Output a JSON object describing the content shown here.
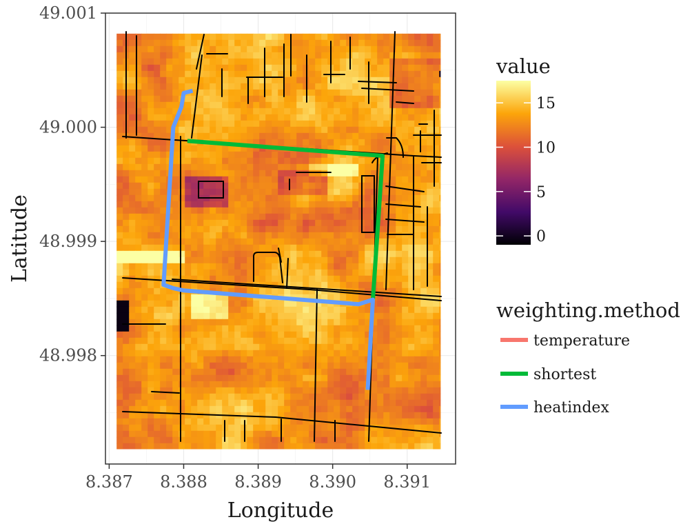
{
  "chart_data": {
    "type": "heatmap",
    "title": "",
    "xlabel": "Longitude",
    "ylabel": "Latitude",
    "xlim": [
      8.38695,
      8.39165
    ],
    "ylim": [
      48.99705,
      49.001
    ],
    "x_ticks": [
      "8.387",
      "8.388",
      "8.389",
      "8.390",
      "8.391"
    ],
    "x_tick_values": [
      8.387,
      8.388,
      8.389,
      8.39,
      8.391
    ],
    "y_ticks": [
      "48.998",
      "48.999",
      "49.000",
      "49.001"
    ],
    "y_tick_values": [
      48.998,
      48.999,
      49.0,
      49.001
    ],
    "grid": true,
    "raster_extent": {
      "lon": [
        8.3871,
        8.39145
      ],
      "lat": [
        48.99718,
        49.00082
      ]
    },
    "color_scale": {
      "title": "value",
      "palette": "inferno",
      "range": [
        -1,
        17.5
      ],
      "breaks": [
        0,
        5,
        10,
        15
      ],
      "break_labels": [
        "0",
        "5",
        "10",
        "15"
      ],
      "colors": [
        "#000004",
        "#420a68",
        "#932667",
        "#dd513a",
        "#fca50a",
        "#fcffa4"
      ]
    },
    "routes_legend": {
      "title": "weighting.method",
      "entries": [
        {
          "name": "temperature",
          "color": "#f8766d"
        },
        {
          "name": "shortest",
          "color": "#00ba38"
        },
        {
          "name": "heatindex",
          "color": "#619cff"
        }
      ]
    },
    "routes": [
      {
        "name": "shortest",
        "color": "#00ba38",
        "lon": [
          8.38805,
          8.39067,
          8.39054
        ],
        "lat": [
          48.99988,
          48.99975,
          48.99849
        ]
      },
      {
        "name": "heatindex",
        "color": "#619cff",
        "lon": [
          8.38812,
          8.388,
          8.38797,
          8.38786,
          8.38773,
          8.38786,
          8.388,
          8.39035,
          8.39054,
          8.39047
        ],
        "lat": [
          49.00032,
          49.0003,
          49.00018,
          49.0,
          48.99862,
          48.99859,
          48.99857,
          48.99845,
          48.99849,
          48.9977
        ]
      }
    ]
  },
  "legend_value": {
    "title": "value",
    "labels": [
      "15",
      "10",
      "5",
      "0"
    ]
  },
  "legend_method": {
    "title": "weighting.method",
    "items": [
      "temperature",
      "shortest",
      "heatindex"
    ]
  }
}
